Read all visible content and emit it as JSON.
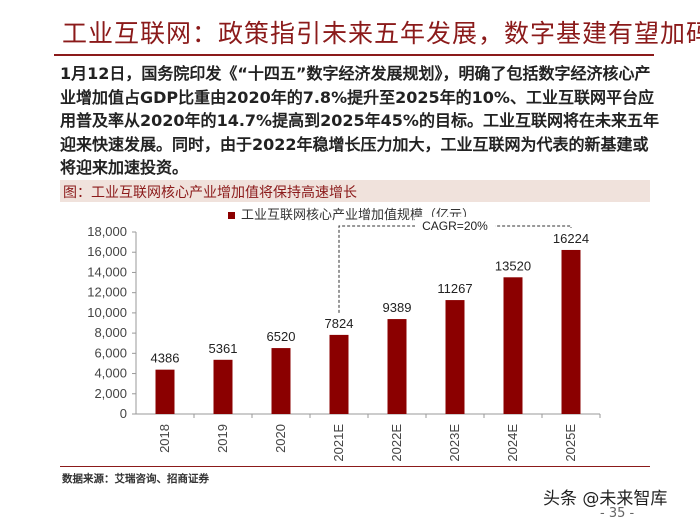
{
  "title": "工业互联网：政策指引未来五年发展，数字基建有望加码",
  "paragraph": [
    {
      "t": "1月12日",
      "b": true
    },
    {
      "t": "，国务院印发《“十四五”数字经济发展规划》，明确了包括数字经济核心产业增加值占",
      "b": false
    },
    {
      "t": "GDP",
      "b": true
    },
    {
      "t": "比重由",
      "b": false
    },
    {
      "t": "2020",
      "b": true
    },
    {
      "t": "年的",
      "b": false
    },
    {
      "t": "7.8%",
      "b": true
    },
    {
      "t": "提升至",
      "b": false
    },
    {
      "t": "2025",
      "b": true
    },
    {
      "t": "年的",
      "b": false
    },
    {
      "t": "10%",
      "b": true
    },
    {
      "t": "、工业互联网平台应用普及率从",
      "b": false
    },
    {
      "t": "2020",
      "b": true
    },
    {
      "t": "年的",
      "b": false
    },
    {
      "t": "14.7%",
      "b": true
    },
    {
      "t": "提高到",
      "b": false
    },
    {
      "t": "2025",
      "b": true
    },
    {
      "t": "年",
      "b": false
    },
    {
      "t": "45%",
      "b": true
    },
    {
      "t": "的目标。工业互联网将在未来五年迎来快速发展。同时，由于",
      "b": false
    },
    {
      "t": "2022",
      "b": true
    },
    {
      "t": "年稳增长压力加大，工业互联网为代表的新基建或将迎来加速投资。",
      "b": false
    }
  ],
  "chart_label": "图：工业互联网核心产业增加值将保持高速增长",
  "source": "数据来源：艾瑞咨询、招商证券",
  "watermark": "头条 @未来智库",
  "page_number": "- 35 -",
  "colors": {
    "bar": "#8b0000",
    "accent": "#8b1a1a"
  },
  "chart_data": {
    "type": "bar",
    "categories": [
      "2018",
      "2019",
      "2020",
      "2021E",
      "2022E",
      "2023E",
      "2024E",
      "2025E"
    ],
    "series": [
      {
        "name": "工业互联网核心产业增加值规模（亿元）",
        "values": [
          4386,
          5361,
          6520,
          7824,
          9389,
          11267,
          13520,
          16224
        ]
      }
    ],
    "ylim": [
      0,
      18000
    ],
    "yticks": [
      "0",
      "2,000",
      "4,000",
      "6,000",
      "8,000",
      "10,000",
      "12,000",
      "14,000",
      "16,000",
      "18,000"
    ],
    "annotation": {
      "text": "CAGR=20%",
      "from": "2021E",
      "to": "2025E"
    },
    "legend": "top",
    "grid": false
  }
}
